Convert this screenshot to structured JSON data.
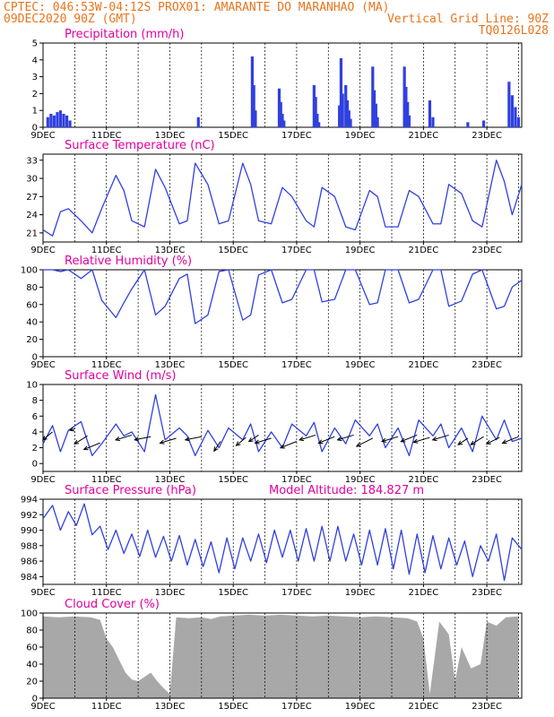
{
  "header": {
    "line1_left": "CPTEC:  046:53W-04:12S  PROX01: AMARANTE DO MARANHAO (MA)",
    "line2_left": "09DEC2020 90Z (GMT)",
    "line2_right": "Vertical Grid Line: 90Z",
    "line3_right": "TQ0126L028"
  },
  "colors": {
    "line": "#3040e0",
    "title": "#e000a0",
    "header": "#e8741c",
    "cloud": "#a8a8a8",
    "arrow": "#000000"
  },
  "x_axis": {
    "labels": [
      "9DEC",
      "11DEC",
      "13DEC",
      "15DEC",
      "17DEC",
      "19DEC",
      "21DEC",
      "23DEC"
    ],
    "start_day": 9,
    "end_day": 24.1
  },
  "chart_data": [
    {
      "id": "precip",
      "type": "bar",
      "title": "Precipitation (mm/h)",
      "ylim": [
        0,
        5
      ],
      "yticks": [
        0,
        1,
        2,
        3,
        4,
        5
      ],
      "x_unit": "day of December 2020 (GMT)",
      "x": [
        9.15,
        9.25,
        9.35,
        9.45,
        9.55,
        9.65,
        9.75,
        9.85,
        13.9,
        15.6,
        15.65,
        15.7,
        16.45,
        16.5,
        16.55,
        16.6,
        17.55,
        17.6,
        17.65,
        17.7,
        18.35,
        18.4,
        18.45,
        18.55,
        18.6,
        18.65,
        18.7,
        19.4,
        19.45,
        19.5,
        19.55,
        20.4,
        20.45,
        20.5,
        20.55,
        21.2,
        21.3,
        22.4,
        22.9,
        23.7,
        23.8,
        23.9,
        24.0
      ],
      "values": [
        0.6,
        0.8,
        0.7,
        0.9,
        1.0,
        0.8,
        0.7,
        0.4,
        0.6,
        4.2,
        2.5,
        1.0,
        2.3,
        1.5,
        0.8,
        0.4,
        2.5,
        1.8,
        0.8,
        0.3,
        1.3,
        4.1,
        2.0,
        2.5,
        1.6,
        1.0,
        0.5,
        3.6,
        2.2,
        1.4,
        0.6,
        3.6,
        2.4,
        1.5,
        0.7,
        1.6,
        0.6,
        0.3,
        0.4,
        2.7,
        1.9,
        1.2,
        0.6
      ]
    },
    {
      "id": "temp",
      "type": "line",
      "title": "Surface Temperature (nC)",
      "ylim": [
        19.5,
        34
      ],
      "yticks": [
        21,
        24,
        27,
        30,
        33
      ],
      "x_unit": "day of December 2020 (GMT)",
      "x": [
        9.0,
        9.3,
        9.55,
        9.8,
        10.2,
        10.55,
        10.85,
        11.3,
        11.55,
        11.8,
        12.2,
        12.55,
        12.85,
        13.3,
        13.55,
        13.8,
        14.2,
        14.55,
        14.85,
        15.3,
        15.55,
        15.8,
        16.2,
        16.55,
        16.85,
        17.3,
        17.55,
        17.8,
        18.2,
        18.55,
        18.85,
        19.3,
        19.55,
        19.8,
        20.2,
        20.55,
        20.85,
        21.3,
        21.55,
        21.8,
        22.2,
        22.55,
        22.85,
        23.3,
        23.55,
        23.8,
        24.1
      ],
      "values": [
        21.5,
        20.5,
        24.5,
        25,
        23,
        21,
        25,
        30.5,
        28,
        23,
        22,
        31.5,
        28.5,
        22.5,
        23,
        32.5,
        29,
        22.5,
        23,
        32.5,
        29,
        23,
        22.5,
        28.5,
        27,
        23,
        22,
        28.5,
        27,
        22,
        21.5,
        28,
        27,
        22,
        22,
        28,
        27,
        22.5,
        22.5,
        29,
        27.5,
        23,
        22,
        33,
        29.5,
        24,
        29
      ]
    },
    {
      "id": "rh",
      "type": "line",
      "title": "Relative Humidity (%)",
      "ylim": [
        0,
        100
      ],
      "yticks": [
        0,
        20,
        40,
        60,
        80,
        100
      ],
      "x_unit": "day of December 2020 (GMT)",
      "x": [
        9.0,
        9.3,
        9.55,
        9.8,
        10.2,
        10.55,
        10.85,
        11.3,
        11.55,
        11.8,
        12.2,
        12.55,
        12.85,
        13.3,
        13.55,
        13.8,
        14.2,
        14.55,
        14.85,
        15.3,
        15.55,
        15.8,
        16.2,
        16.55,
        16.85,
        17.3,
        17.55,
        17.8,
        18.2,
        18.55,
        18.85,
        19.3,
        19.55,
        19.8,
        20.2,
        20.55,
        20.85,
        21.3,
        21.55,
        21.8,
        22.2,
        22.55,
        22.85,
        23.3,
        23.55,
        23.8,
        24.1
      ],
      "values": [
        100,
        100,
        98,
        100,
        90,
        100,
        65,
        45,
        62,
        78,
        100,
        48,
        58,
        90,
        95,
        38,
        48,
        98,
        100,
        42,
        48,
        94,
        100,
        62,
        66,
        100,
        100,
        63,
        66,
        100,
        100,
        60,
        62,
        100,
        100,
        62,
        66,
        100,
        100,
        58,
        64,
        95,
        100,
        55,
        58,
        80,
        88
      ]
    },
    {
      "id": "wind",
      "type": "line",
      "title": "Surface Wind (m/s)",
      "ylim": [
        -1,
        10
      ],
      "yticks": [
        0,
        2,
        4,
        6,
        8,
        10
      ],
      "x_unit": "day of December 2020 (GMT)",
      "x": [
        9.0,
        9.3,
        9.55,
        9.8,
        10.2,
        10.55,
        10.85,
        11.3,
        11.55,
        11.8,
        12.2,
        12.55,
        12.85,
        13.3,
        13.55,
        13.8,
        14.2,
        14.55,
        14.85,
        15.3,
        15.55,
        15.8,
        16.2,
        16.55,
        16.85,
        17.3,
        17.55,
        17.8,
        18.2,
        18.55,
        18.85,
        19.3,
        19.55,
        19.8,
        20.2,
        20.55,
        20.85,
        21.3,
        21.55,
        21.8,
        22.2,
        22.55,
        22.85,
        23.3,
        23.55,
        23.8,
        24.1
      ],
      "values": [
        2.5,
        4.8,
        1.5,
        4.2,
        5.3,
        1.0,
        2.5,
        5.0,
        3.5,
        4.0,
        1.5,
        8.7,
        3.0,
        4.5,
        3.5,
        1.0,
        4.2,
        2.0,
        4.5,
        3.0,
        5.0,
        1.5,
        4.0,
        2.0,
        5.0,
        3.5,
        5.2,
        1.5,
        4.5,
        2.5,
        5.5,
        3.5,
        5.0,
        2.0,
        4.5,
        1.0,
        5.5,
        3.5,
        5.0,
        2.0,
        4.5,
        1.5,
        6.0,
        3.0,
        5.5,
        2.8,
        3.2
      ],
      "arrows": [
        {
          "x": 9.3,
          "y": 4,
          "u": -0.6,
          "v": -0.5
        },
        {
          "x": 10.0,
          "y": 4.4,
          "u": -0.3,
          "v": -0.1
        },
        {
          "x": 10.4,
          "y": 3.5,
          "u": -0.8,
          "v": -0.5
        },
        {
          "x": 10.8,
          "y": 2.6,
          "u": -1,
          "v": -0.4
        },
        {
          "x": 11.8,
          "y": 3.6,
          "u": -1,
          "v": -0.3
        },
        {
          "x": 12.4,
          "y": 3.4,
          "u": -1,
          "v": -0.2
        },
        {
          "x": 13.2,
          "y": 3.2,
          "u": -1,
          "v": -0.3
        },
        {
          "x": 14.0,
          "y": 3.4,
          "u": -1,
          "v": -0.2
        },
        {
          "x": 14.6,
          "y": 2.8,
          "u": -0.4,
          "v": -0.6
        },
        {
          "x": 15.4,
          "y": 3.3,
          "u": -0.6,
          "v": -0.5
        },
        {
          "x": 15.8,
          "y": 3.6,
          "u": -0.6,
          "v": -0.4
        },
        {
          "x": 16.2,
          "y": 3.2,
          "u": -1,
          "v": -0.3
        },
        {
          "x": 17.0,
          "y": 2.8,
          "u": -1,
          "v": -0.4
        },
        {
          "x": 17.6,
          "y": 3.6,
          "u": -1,
          "v": -0.3
        },
        {
          "x": 18.2,
          "y": 3.4,
          "u": -1,
          "v": -0.4
        },
        {
          "x": 18.8,
          "y": 3.6,
          "u": -1,
          "v": -0.3
        },
        {
          "x": 19.4,
          "y": 3.2,
          "u": -1,
          "v": -0.5
        },
        {
          "x": 20.2,
          "y": 3.4,
          "u": -1,
          "v": -0.3
        },
        {
          "x": 20.8,
          "y": 3.6,
          "u": -1,
          "v": -0.4
        },
        {
          "x": 21.2,
          "y": 3.3,
          "u": -1,
          "v": -0.3
        },
        {
          "x": 21.8,
          "y": 3.6,
          "u": -1,
          "v": -0.3
        },
        {
          "x": 22.4,
          "y": 3.2,
          "u": -0.6,
          "v": -0.4
        },
        {
          "x": 22.9,
          "y": 3.4,
          "u": -0.8,
          "v": -0.5
        },
        {
          "x": 23.4,
          "y": 3.3,
          "u": -0.8,
          "v": -0.4
        },
        {
          "x": 24.0,
          "y": 3.4,
          "u": -1,
          "v": -0.4
        }
      ]
    },
    {
      "id": "pressure",
      "type": "line",
      "title": "Surface Pressure (hPa)",
      "subtitle": "Model Altitude: 184.827 m",
      "ylim": [
        983,
        994
      ],
      "yticks": [
        984,
        986,
        988,
        990,
        992,
        994
      ],
      "x_unit": "day of December 2020 (GMT)",
      "x": [
        9.0,
        9.3,
        9.55,
        9.8,
        10.05,
        10.3,
        10.55,
        10.8,
        11.05,
        11.3,
        11.55,
        11.8,
        12.05,
        12.3,
        12.55,
        12.8,
        13.05,
        13.3,
        13.55,
        13.8,
        14.05,
        14.3,
        14.55,
        14.8,
        15.05,
        15.3,
        15.55,
        15.8,
        16.05,
        16.3,
        16.55,
        16.8,
        17.05,
        17.3,
        17.55,
        17.8,
        18.05,
        18.3,
        18.55,
        18.8,
        19.05,
        19.3,
        19.55,
        19.8,
        20.05,
        20.3,
        20.55,
        20.8,
        21.05,
        21.3,
        21.55,
        21.8,
        22.05,
        22.3,
        22.55,
        22.8,
        23.05,
        23.3,
        23.55,
        23.8,
        24.1
      ],
      "values": [
        991.5,
        993.2,
        990.0,
        992.4,
        990.6,
        993.4,
        989.4,
        990.5,
        987.5,
        990.0,
        987.0,
        989.5,
        986.6,
        990.0,
        986.5,
        989.2,
        986.0,
        989.3,
        985.5,
        988.8,
        985.3,
        988.5,
        984.5,
        989.0,
        985.0,
        989.0,
        986.0,
        989.5,
        985.8,
        990.0,
        986.5,
        990.0,
        986.0,
        990.2,
        986.0,
        990.5,
        986.0,
        990.5,
        986.0,
        989.5,
        985.5,
        990.0,
        985.5,
        990.2,
        985.0,
        990.0,
        984.3,
        989.5,
        984.5,
        989.3,
        985.0,
        989.0,
        985.5,
        988.6,
        984.0,
        988.0,
        986.0,
        989.5,
        983.5,
        989.0,
        987.5
      ]
    },
    {
      "id": "cloud",
      "type": "area",
      "title": "Cloud Cover (%)",
      "ylim": [
        0,
        100
      ],
      "yticks": [
        0,
        20,
        40,
        60,
        80,
        100
      ],
      "x_unit": "day of December 2020 (GMT)",
      "x": [
        9.0,
        9.5,
        10.0,
        10.5,
        10.8,
        11.0,
        11.2,
        11.4,
        11.6,
        11.8,
        12.0,
        12.2,
        12.4,
        12.6,
        12.8,
        13.0,
        13.2,
        13.6,
        14.0,
        14.3,
        14.6,
        15.0,
        15.5,
        16.0,
        16.5,
        17.0,
        17.5,
        18.0,
        18.5,
        19.0,
        19.5,
        20.0,
        20.5,
        20.8,
        21.0,
        21.2,
        21.5,
        21.8,
        22.0,
        22.2,
        22.5,
        22.8,
        23.0,
        23.3,
        23.6,
        24.0
      ],
      "values": [
        96,
        95,
        96,
        95,
        92,
        70,
        60,
        45,
        30,
        22,
        20,
        25,
        30,
        20,
        12,
        5,
        95,
        94,
        95,
        93,
        96,
        97,
        98,
        97,
        98,
        97,
        96,
        97,
        96,
        95,
        96,
        95,
        94,
        90,
        70,
        5,
        90,
        75,
        20,
        60,
        35,
        40,
        90,
        85,
        95,
        96
      ]
    }
  ]
}
